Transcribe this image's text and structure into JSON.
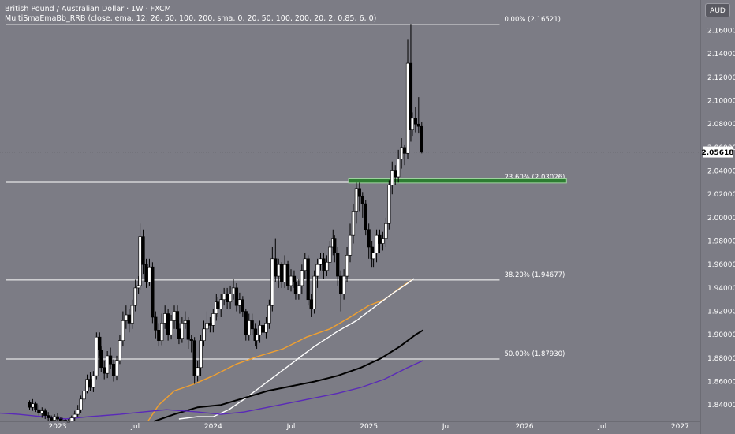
{
  "header": {
    "symbol_line": "British Pound / Australian Dollar · 1W · FXCM",
    "indicator_line": "MultiSmaEmaBb_RRB (close, ema, 12, 26, 50, 100, 200, sma, 0, 20, 50, 100, 200, 20, 2, 0.85, 6, 0)"
  },
  "currency_button": "AUD",
  "current_price_label": "2.05618",
  "colors": {
    "background": "#7c7c85",
    "bull_candle": "#ffffff",
    "bear_candle": "#000000",
    "ema_orange": "#f0a030",
    "sma_white": "#ffffff",
    "sma_black": "#000000",
    "sma_purple": "#5a2ab8",
    "fib_line": "#ffffff",
    "zone_fill": "#2e7d32"
  },
  "chart_data": {
    "type": "candlestick",
    "timeframe": "1W",
    "y_axis_ticks": [
      "2.16000",
      "2.14000",
      "2.12000",
      "2.10000",
      "2.08000",
      "2.06000",
      "2.04000",
      "2.02000",
      "2.00000",
      "1.98000",
      "1.96000",
      "1.94000",
      "1.92000",
      "1.90000",
      "1.88000",
      "1.86000",
      "1.84000"
    ],
    "ylim": [
      1.826,
      2.186
    ],
    "x_axis_ticks": [
      "2023",
      "Jul",
      "2024",
      "Jul",
      "2025",
      "Jul",
      "2026",
      "Jul",
      "2027"
    ],
    "xlim": [
      2022.63,
      2027.13
    ],
    "current_price": 2.05618,
    "fib_levels": [
      {
        "label": "0.00% (2.16521)",
        "value": 2.16521
      },
      {
        "label": "23.60% (2.03026)",
        "value": 2.03026
      },
      {
        "label": "38.20% (1.94677)",
        "value": 1.94677
      },
      {
        "label": "50.00% (1.87930)",
        "value": 1.8793
      }
    ],
    "zone": {
      "from": 2024.87,
      "to": 2026.27,
      "low": 2.0297,
      "high": 2.0333
    },
    "candles": [
      [
        2022.82,
        1.842,
        1.838,
        1.844,
        1.836
      ],
      [
        2022.84,
        1.838,
        1.841,
        1.845,
        1.835
      ],
      [
        2022.86,
        1.841,
        1.836,
        1.843,
        1.834
      ],
      [
        2022.88,
        1.836,
        1.833,
        1.84,
        1.831
      ],
      [
        2022.9,
        1.833,
        1.835,
        1.838,
        1.829
      ],
      [
        2022.92,
        1.835,
        1.831,
        1.837,
        1.828
      ],
      [
        2022.94,
        1.831,
        1.829,
        1.834,
        1.826
      ],
      [
        2022.96,
        1.829,
        1.827,
        1.831,
        1.826
      ],
      [
        2022.98,
        1.827,
        1.83,
        1.832,
        1.826
      ],
      [
        2023.0,
        1.83,
        1.828,
        1.833,
        1.826
      ],
      [
        2023.02,
        1.828,
        1.826,
        1.83,
        1.826
      ],
      [
        2023.03,
        1.826,
        1.827,
        1.829,
        1.826
      ],
      [
        2023.05,
        1.827,
        1.826,
        1.828,
        1.826
      ],
      [
        2023.07,
        1.826,
        1.826,
        1.828,
        1.826
      ],
      [
        2023.09,
        1.826,
        1.829,
        1.831,
        1.826
      ],
      [
        2023.11,
        1.829,
        1.832,
        1.835,
        1.826
      ],
      [
        2023.13,
        1.832,
        1.836,
        1.84,
        1.83
      ],
      [
        2023.15,
        1.836,
        1.845,
        1.848,
        1.833
      ],
      [
        2023.17,
        1.845,
        1.852,
        1.856,
        1.842
      ],
      [
        2023.19,
        1.852,
        1.862,
        1.866,
        1.85
      ],
      [
        2023.21,
        1.862,
        1.855,
        1.868,
        1.852
      ],
      [
        2023.23,
        1.855,
        1.865,
        1.869,
        1.851
      ],
      [
        2023.25,
        1.865,
        1.898,
        1.902,
        1.862
      ],
      [
        2023.27,
        1.898,
        1.887,
        1.902,
        1.882
      ],
      [
        2023.28,
        1.887,
        1.872,
        1.89,
        1.868
      ],
      [
        2023.3,
        1.872,
        1.867,
        1.878,
        1.862
      ],
      [
        2023.32,
        1.867,
        1.882,
        1.886,
        1.863
      ],
      [
        2023.34,
        1.882,
        1.875,
        1.889,
        1.871
      ],
      [
        2023.36,
        1.875,
        1.865,
        1.879,
        1.86
      ],
      [
        2023.38,
        1.865,
        1.878,
        1.882,
        1.861
      ],
      [
        2023.4,
        1.878,
        1.895,
        1.9,
        1.875
      ],
      [
        2023.42,
        1.895,
        1.912,
        1.92,
        1.89
      ],
      [
        2023.44,
        1.912,
        1.917,
        1.925,
        1.905
      ],
      [
        2023.46,
        1.917,
        1.91,
        1.922,
        1.902
      ],
      [
        2023.48,
        1.91,
        1.925,
        1.93,
        1.905
      ],
      [
        2023.5,
        1.925,
        1.94,
        1.947,
        1.92
      ],
      [
        2023.52,
        1.94,
        1.942,
        1.95,
        1.935
      ],
      [
        2023.53,
        1.942,
        1.984,
        1.995,
        1.938
      ],
      [
        2023.55,
        1.984,
        1.96,
        1.99,
        1.952
      ],
      [
        2023.57,
        1.96,
        1.945,
        1.965,
        1.94
      ],
      [
        2023.59,
        1.945,
        1.958,
        1.965,
        1.942
      ],
      [
        2023.61,
        1.958,
        1.915,
        1.962,
        1.91
      ],
      [
        2023.63,
        1.915,
        1.904,
        1.92,
        1.897
      ],
      [
        2023.65,
        1.904,
        1.895,
        1.91,
        1.89
      ],
      [
        2023.67,
        1.895,
        1.91,
        1.918,
        1.891
      ],
      [
        2023.69,
        1.91,
        1.918,
        1.925,
        1.905
      ],
      [
        2023.71,
        1.918,
        1.9,
        1.922,
        1.895
      ],
      [
        2023.73,
        1.9,
        1.912,
        1.917,
        1.896
      ],
      [
        2023.75,
        1.912,
        1.92,
        1.925,
        1.905
      ],
      [
        2023.77,
        1.92,
        1.905,
        1.925,
        1.9
      ],
      [
        2023.78,
        1.905,
        1.897,
        1.91,
        1.892
      ],
      [
        2023.8,
        1.897,
        1.91,
        1.915,
        1.893
      ],
      [
        2023.82,
        1.91,
        1.912,
        1.92,
        1.905
      ],
      [
        2023.84,
        1.912,
        1.896,
        1.915,
        1.888
      ],
      [
        2023.86,
        1.896,
        1.895,
        1.9,
        1.885
      ],
      [
        2023.88,
        1.895,
        1.865,
        1.898,
        1.858
      ],
      [
        2023.9,
        1.865,
        1.872,
        1.878,
        1.86
      ],
      [
        2023.92,
        1.872,
        1.895,
        1.9,
        1.865
      ],
      [
        2023.94,
        1.895,
        1.905,
        1.912,
        1.89
      ],
      [
        2023.96,
        1.905,
        1.91,
        1.92,
        1.898
      ],
      [
        2023.98,
        1.91,
        1.908,
        1.915,
        1.902
      ],
      [
        2024.0,
        1.908,
        1.918,
        1.922,
        1.902
      ],
      [
        2024.02,
        1.918,
        1.928,
        1.935,
        1.912
      ],
      [
        2024.03,
        1.928,
        1.922,
        1.932,
        1.915
      ],
      [
        2024.05,
        1.922,
        1.93,
        1.935,
        1.915
      ],
      [
        2024.07,
        1.93,
        1.935,
        1.94,
        1.925
      ],
      [
        2024.09,
        1.935,
        1.928,
        1.94,
        1.922
      ],
      [
        2024.11,
        1.928,
        1.935,
        1.942,
        1.922
      ],
      [
        2024.13,
        1.935,
        1.94,
        1.948,
        1.93
      ],
      [
        2024.15,
        1.94,
        1.925,
        1.944,
        1.92
      ],
      [
        2024.17,
        1.925,
        1.93,
        1.936,
        1.918
      ],
      [
        2024.19,
        1.93,
        1.92,
        1.933,
        1.915
      ],
      [
        2024.21,
        1.92,
        1.9,
        1.922,
        1.895
      ],
      [
        2024.23,
        1.9,
        1.912,
        1.918,
        1.895
      ],
      [
        2024.25,
        1.912,
        1.905,
        1.918,
        1.9
      ],
      [
        2024.27,
        1.905,
        1.895,
        1.91,
        1.89
      ],
      [
        2024.28,
        1.895,
        1.9,
        1.905,
        1.888
      ],
      [
        2024.3,
        1.9,
        1.908,
        1.912,
        1.893
      ],
      [
        2024.32,
        1.908,
        1.902,
        1.912,
        1.895
      ],
      [
        2024.34,
        1.902,
        1.91,
        1.915,
        1.897
      ],
      [
        2024.36,
        1.91,
        1.925,
        1.93,
        1.905
      ],
      [
        2024.38,
        1.925,
        1.965,
        1.975,
        1.92
      ],
      [
        2024.4,
        1.965,
        1.95,
        1.982,
        1.945
      ],
      [
        2024.42,
        1.95,
        1.96,
        1.965,
        1.94
      ],
      [
        2024.44,
        1.96,
        1.945,
        1.962,
        1.94
      ],
      [
        2024.46,
        1.945,
        1.96,
        1.968,
        1.94
      ],
      [
        2024.48,
        1.96,
        1.942,
        1.963,
        1.938
      ],
      [
        2024.5,
        1.942,
        1.95,
        1.956,
        1.937
      ],
      [
        2024.52,
        1.95,
        1.945,
        1.955,
        1.94
      ],
      [
        2024.53,
        1.945,
        1.935,
        1.948,
        1.93
      ],
      [
        2024.55,
        1.935,
        1.942,
        1.948,
        1.93
      ],
      [
        2024.57,
        1.942,
        1.955,
        1.96,
        1.935
      ],
      [
        2024.59,
        1.955,
        1.965,
        1.97,
        1.948
      ],
      [
        2024.61,
        1.965,
        1.93,
        1.968,
        1.925
      ],
      [
        2024.63,
        1.93,
        1.922,
        1.935,
        1.915
      ],
      [
        2024.65,
        1.922,
        1.95,
        1.955,
        1.918
      ],
      [
        2024.67,
        1.95,
        1.96,
        1.965,
        1.94
      ],
      [
        2024.69,
        1.96,
        1.965,
        1.97,
        1.955
      ],
      [
        2024.71,
        1.965,
        1.955,
        1.97,
        1.948
      ],
      [
        2024.73,
        1.955,
        1.962,
        1.968,
        1.95
      ],
      [
        2024.75,
        1.962,
        1.975,
        1.98,
        1.955
      ],
      [
        2024.77,
        1.975,
        1.982,
        1.99,
        1.968
      ],
      [
        2024.78,
        1.982,
        1.97,
        1.985,
        1.962
      ],
      [
        2024.8,
        1.97,
        1.95,
        1.975,
        1.942
      ],
      [
        2024.82,
        1.95,
        1.935,
        1.955,
        1.92
      ],
      [
        2024.84,
        1.935,
        1.95,
        1.956,
        1.93
      ],
      [
        2024.86,
        1.95,
        1.968,
        1.975,
        1.945
      ],
      [
        2024.88,
        1.968,
        1.985,
        1.995,
        1.962
      ],
      [
        2024.9,
        1.985,
        2.005,
        2.012,
        1.978
      ],
      [
        2024.92,
        2.005,
        2.025,
        2.03,
        1.995
      ],
      [
        2024.94,
        2.025,
        2.018,
        2.03,
        2.005
      ],
      [
        2024.96,
        2.018,
        2.012,
        2.022,
        2.0
      ],
      [
        2024.98,
        2.012,
        1.99,
        2.015,
        1.985
      ],
      [
        2025.0,
        1.99,
        1.975,
        1.995,
        1.965
      ],
      [
        2025.02,
        1.975,
        1.965,
        1.98,
        1.958
      ],
      [
        2025.03,
        1.965,
        1.97,
        1.975,
        1.958
      ],
      [
        2025.05,
        1.97,
        1.985,
        1.99,
        1.962
      ],
      [
        2025.07,
        1.985,
        1.978,
        1.99,
        1.97
      ],
      [
        2025.09,
        1.978,
        1.982,
        1.988,
        1.972
      ],
      [
        2025.11,
        1.982,
        1.995,
        2.0,
        1.975
      ],
      [
        2025.13,
        1.995,
        2.028,
        2.032,
        1.99
      ],
      [
        2025.15,
        2.028,
        2.04,
        2.048,
        2.02
      ],
      [
        2025.17,
        2.04,
        2.035,
        2.045,
        2.028
      ],
      [
        2025.19,
        2.035,
        2.05,
        2.058,
        2.03
      ],
      [
        2025.21,
        2.05,
        2.06,
        2.068,
        2.042
      ],
      [
        2025.23,
        2.06,
        2.055,
        2.062,
        2.045
      ],
      [
        2025.25,
        2.055,
        2.132,
        2.152,
        2.05
      ],
      [
        2025.27,
        2.132,
        2.075,
        2.165,
        2.065
      ],
      [
        2025.28,
        2.075,
        2.085,
        2.09,
        2.07
      ],
      [
        2025.3,
        2.085,
        2.08,
        2.095,
        2.073
      ],
      [
        2025.32,
        2.08,
        2.078,
        2.103,
        2.072
      ],
      [
        2025.34,
        2.078,
        2.056,
        2.082,
        2.055
      ]
    ],
    "moving_averages": [
      {
        "name": "ema-orange",
        "color": "#f0a030",
        "points": [
          [
            2023.58,
            1.826
          ],
          [
            2023.65,
            1.84
          ],
          [
            2023.75,
            1.852
          ],
          [
            2023.88,
            1.858
          ],
          [
            2024.0,
            1.865
          ],
          [
            2024.15,
            1.875
          ],
          [
            2024.3,
            1.882
          ],
          [
            2024.45,
            1.888
          ],
          [
            2024.6,
            1.898
          ],
          [
            2024.75,
            1.905
          ],
          [
            2024.88,
            1.915
          ],
          [
            2025.0,
            1.925
          ],
          [
            2025.1,
            1.93
          ],
          [
            2025.2,
            1.94
          ],
          [
            2025.28,
            1.947
          ]
        ]
      },
      {
        "name": "sma-white",
        "color": "#ffffff",
        "points": [
          [
            2023.78,
            1.828
          ],
          [
            2023.9,
            1.83
          ],
          [
            2024.0,
            1.83
          ],
          [
            2024.1,
            1.836
          ],
          [
            2024.2,
            1.845
          ],
          [
            2024.35,
            1.86
          ],
          [
            2024.5,
            1.875
          ],
          [
            2024.65,
            1.89
          ],
          [
            2024.8,
            1.903
          ],
          [
            2024.92,
            1.912
          ],
          [
            2025.05,
            1.925
          ],
          [
            2025.15,
            1.935
          ],
          [
            2025.25,
            1.944
          ],
          [
            2025.29,
            1.948
          ]
        ]
      },
      {
        "name": "sma-black",
        "color": "#000000",
        "points": [
          [
            2023.62,
            1.826
          ],
          [
            2023.75,
            1.832
          ],
          [
            2023.9,
            1.838
          ],
          [
            2024.05,
            1.84
          ],
          [
            2024.2,
            1.846
          ],
          [
            2024.35,
            1.852
          ],
          [
            2024.5,
            1.856
          ],
          [
            2024.65,
            1.86
          ],
          [
            2024.8,
            1.865
          ],
          [
            2024.95,
            1.872
          ],
          [
            2025.08,
            1.88
          ],
          [
            2025.2,
            1.89
          ],
          [
            2025.3,
            1.9
          ],
          [
            2025.35,
            1.904
          ]
        ]
      },
      {
        "name": "sma-purple",
        "color": "#5a2ab8",
        "points": [
          [
            2022.63,
            1.833
          ],
          [
            2022.75,
            1.832
          ],
          [
            2022.9,
            1.83
          ],
          [
            2023.05,
            1.828
          ],
          [
            2023.2,
            1.83
          ],
          [
            2023.4,
            1.832
          ],
          [
            2023.55,
            1.834
          ],
          [
            2023.7,
            1.836
          ],
          [
            2023.9,
            1.834
          ],
          [
            2024.05,
            1.832
          ],
          [
            2024.2,
            1.834
          ],
          [
            2024.35,
            1.838
          ],
          [
            2024.5,
            1.842
          ],
          [
            2024.65,
            1.846
          ],
          [
            2024.8,
            1.85
          ],
          [
            2024.95,
            1.855
          ],
          [
            2025.1,
            1.862
          ],
          [
            2025.25,
            1.872
          ],
          [
            2025.35,
            1.878
          ]
        ]
      }
    ]
  }
}
